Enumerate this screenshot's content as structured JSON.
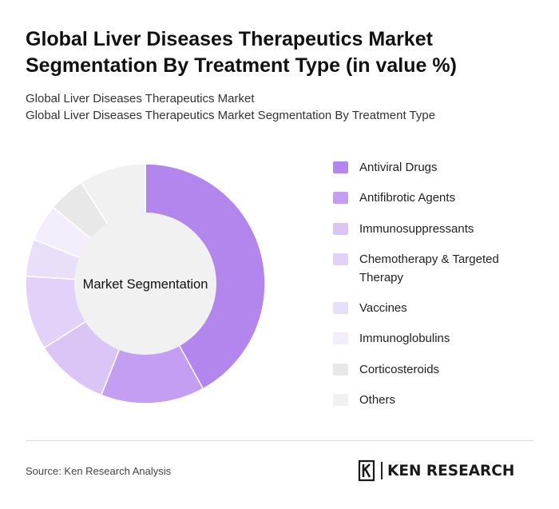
{
  "header": {
    "title": "Global Liver Diseases Therapeutics Market Segmentation By Treatment Type (in value %)",
    "subtitle_line1": "Global Liver Diseases Therapeutics Market",
    "subtitle_line2": "Global Liver Diseases Therapeutics Market Segmentation By Treatment Type"
  },
  "chart_data": {
    "type": "pie",
    "variant": "donut",
    "center_label": "Market Segmentation",
    "legend_position": "right",
    "categories": [
      "Antiviral Drugs",
      "Antifibrotic Agents",
      "Immunosuppressants",
      "Chemotherapy & Targeted Therapy",
      "Vaccines",
      "Immunoglobulins",
      "Corticosteroids",
      "Others"
    ],
    "values": [
      42,
      14,
      10,
      10,
      5,
      5,
      5,
      9
    ],
    "colors": [
      "#b286ec",
      "#c49ef2",
      "#dbc5f7",
      "#e2d1f8",
      "#eadff9",
      "#f4eefc",
      "#e8e8e8",
      "#f1f1f1"
    ],
    "center_color": "#f1f1f1"
  },
  "footer": {
    "source": "Source: Ken Research Analysis",
    "brand_name": "KEN RESEARCH",
    "brand_icon": "ken-research-logo-icon"
  }
}
